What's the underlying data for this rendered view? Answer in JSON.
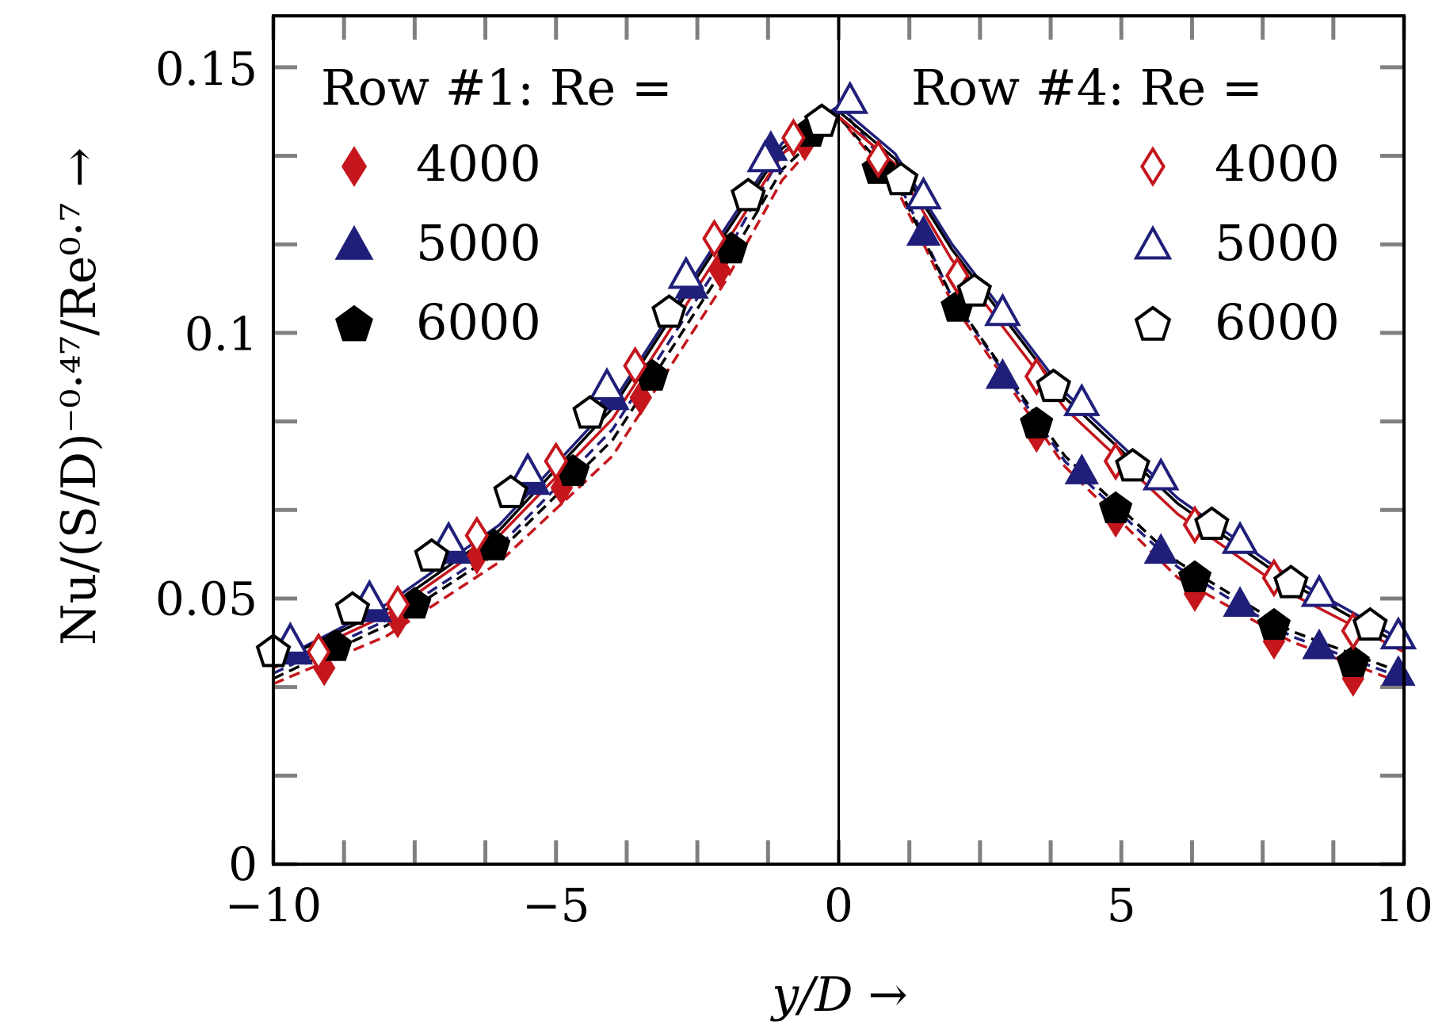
{
  "chart_data": {
    "type": "scatter",
    "xlabel": "y/D →",
    "ylabel": "Nu/(S/D)⁻⁰·⁴⁷/Re⁰·⁷ →",
    "xlim": [
      -10,
      10
    ],
    "ylim": [
      0,
      0.16
    ],
    "x_ticks": [
      -10,
      -5,
      0,
      5,
      10
    ],
    "x_tick_labels": [
      "−10",
      "−5",
      "0",
      "5",
      "10"
    ],
    "y_ticks": [
      0,
      0.05,
      0.1,
      0.15
    ],
    "y_tick_labels": [
      "0",
      "0.05",
      "0.1",
      "0.15"
    ],
    "legend_left_title": "Row #1: Re =",
    "legend_right_title": "Row #4: Re =",
    "colors": {
      "red": "#c4161c",
      "blue": "#1f1f7a",
      "black": "#000000"
    },
    "series": [
      {
        "name": "4000",
        "row": 1,
        "fill": "filled",
        "marker": "diamond",
        "color": "#c4161c",
        "x": [
          -9.1,
          -7.8,
          -6.4,
          -4.9,
          -3.5,
          -2.1,
          -0.6
        ],
        "y": [
          0.037,
          0.046,
          0.058,
          0.071,
          0.088,
          0.112,
          0.136
        ]
      },
      {
        "name": "5000",
        "row": 1,
        "fill": "filled",
        "marker": "triangle",
        "color": "#1f1f7a",
        "x": [
          -9.6,
          -8.2,
          -6.8,
          -5.4,
          -4.0,
          -2.6,
          -1.2
        ],
        "y": [
          0.04,
          0.048,
          0.059,
          0.072,
          0.088,
          0.109,
          0.135
        ]
      },
      {
        "name": "6000",
        "row": 1,
        "fill": "filled",
        "marker": "pentagon",
        "color": "#000000",
        "x": [
          -8.9,
          -7.5,
          -6.1,
          -4.7,
          -3.3,
          -1.9,
          -0.5
        ],
        "y": [
          0.041,
          0.049,
          0.06,
          0.074,
          0.092,
          0.116,
          0.138
        ]
      },
      {
        "name": "4000",
        "row": 4,
        "fill": "filled",
        "marker": "diamond",
        "color": "#c4161c",
        "x": [
          3.5,
          4.9,
          6.3,
          7.7,
          9.1
        ],
        "y": [
          0.081,
          0.065,
          0.051,
          0.042,
          0.035
        ]
      },
      {
        "name": "5000",
        "row": 4,
        "fill": "filled",
        "marker": "triangle",
        "color": "#1f1f7a",
        "x": [
          1.5,
          2.9,
          4.3,
          5.7,
          7.1,
          8.5,
          9.9
        ],
        "y": [
          0.119,
          0.092,
          0.074,
          0.059,
          0.049,
          0.041,
          0.036
        ]
      },
      {
        "name": "6000",
        "row": 4,
        "fill": "filled",
        "marker": "pentagon",
        "color": "#000000",
        "x": [
          0.7,
          2.1,
          3.5,
          4.9,
          6.3,
          7.7,
          9.1
        ],
        "y": [
          0.131,
          0.105,
          0.083,
          0.067,
          0.054,
          0.045,
          0.038
        ]
      },
      {
        "name": "4000",
        "row": 4,
        "fill": "open",
        "marker": "diamond",
        "color": "#c4161c",
        "x": [
          -9.2,
          -7.8,
          -6.4,
          -5.0,
          -3.6,
          -2.2,
          -0.8,
          0.7,
          2.1,
          3.5,
          4.9,
          6.3,
          7.7,
          9.1
        ],
        "y": [
          0.04,
          0.049,
          0.062,
          0.076,
          0.094,
          0.118,
          0.137,
          0.133,
          0.111,
          0.092,
          0.076,
          0.064,
          0.054,
          0.044
        ]
      },
      {
        "name": "5000",
        "row": 4,
        "fill": "open",
        "marker": "triangle",
        "color": "#1f1f7a",
        "x": [
          -9.7,
          -8.3,
          -6.9,
          -5.5,
          -4.1,
          -2.7,
          -1.3,
          0.2,
          1.5,
          2.9,
          4.3,
          5.7,
          7.1,
          8.5,
          9.9
        ],
        "y": [
          0.042,
          0.05,
          0.061,
          0.074,
          0.09,
          0.111,
          0.133,
          0.144,
          0.126,
          0.104,
          0.087,
          0.073,
          0.061,
          0.051,
          0.043
        ]
      },
      {
        "name": "6000",
        "row": 4,
        "fill": "open",
        "marker": "pentagon",
        "color": "#000000",
        "x": [
          -10.0,
          -8.6,
          -7.2,
          -5.8,
          -4.4,
          -3.0,
          -1.6,
          -0.3,
          1.1,
          2.4,
          3.8,
          5.2,
          6.6,
          8.0,
          9.4
        ],
        "y": [
          0.04,
          0.048,
          0.058,
          0.07,
          0.085,
          0.104,
          0.126,
          0.14,
          0.129,
          0.108,
          0.09,
          0.075,
          0.064,
          0.053,
          0.045
        ]
      }
    ],
    "fit_lines": [
      {
        "name": "row1-4000-dashed",
        "color": "#c4161c",
        "style": "dashed",
        "x": [
          -10,
          -8,
          -6,
          -4,
          -2,
          -1,
          0,
          1,
          2,
          4,
          6,
          8,
          10
        ],
        "y": [
          0.034,
          0.043,
          0.057,
          0.077,
          0.11,
          0.129,
          0.141,
          0.128,
          0.106,
          0.075,
          0.054,
          0.042,
          0.034
        ]
      },
      {
        "name": "row1-5000-dashed",
        "color": "#1f1f7a",
        "style": "dashed",
        "x": [
          -10,
          -8,
          -6,
          -4,
          -2,
          -1,
          0,
          1,
          2,
          4,
          6,
          8,
          10
        ],
        "y": [
          0.036,
          0.046,
          0.06,
          0.082,
          0.115,
          0.134,
          0.143,
          0.13,
          0.107,
          0.076,
          0.056,
          0.043,
          0.035
        ]
      },
      {
        "name": "row1-6000-dashed",
        "color": "#000000",
        "style": "dashed",
        "x": [
          -10,
          -8,
          -6,
          -4,
          -2,
          -1,
          0,
          1,
          2,
          4,
          6,
          8,
          10
        ],
        "y": [
          0.035,
          0.045,
          0.059,
          0.08,
          0.113,
          0.131,
          0.141,
          0.129,
          0.107,
          0.077,
          0.057,
          0.044,
          0.036
        ]
      },
      {
        "name": "row4-4000-solid",
        "color": "#c4161c",
        "style": "solid",
        "x": [
          -10,
          -8,
          -6,
          -4,
          -2,
          -1,
          0,
          1,
          2,
          4,
          6,
          8,
          10
        ],
        "y": [
          0.037,
          0.047,
          0.062,
          0.084,
          0.117,
          0.134,
          0.141,
          0.132,
          0.114,
          0.086,
          0.066,
          0.051,
          0.04
        ]
      },
      {
        "name": "row4-5000-solid",
        "color": "#1f1f7a",
        "style": "solid",
        "x": [
          -10,
          -8,
          -6,
          -4,
          -2,
          -1,
          0,
          1,
          2,
          4,
          6,
          8,
          10
        ],
        "y": [
          0.038,
          0.049,
          0.064,
          0.087,
          0.12,
          0.136,
          0.143,
          0.134,
          0.117,
          0.089,
          0.069,
          0.054,
          0.042
        ]
      },
      {
        "name": "row4-6000-solid",
        "color": "#000000",
        "style": "solid",
        "x": [
          -10,
          -8,
          -6,
          -4,
          -2,
          -1,
          0,
          1,
          2,
          4,
          6,
          8,
          10
        ],
        "y": [
          0.038,
          0.048,
          0.063,
          0.086,
          0.119,
          0.135,
          0.142,
          0.133,
          0.116,
          0.088,
          0.068,
          0.053,
          0.041
        ]
      }
    ]
  }
}
